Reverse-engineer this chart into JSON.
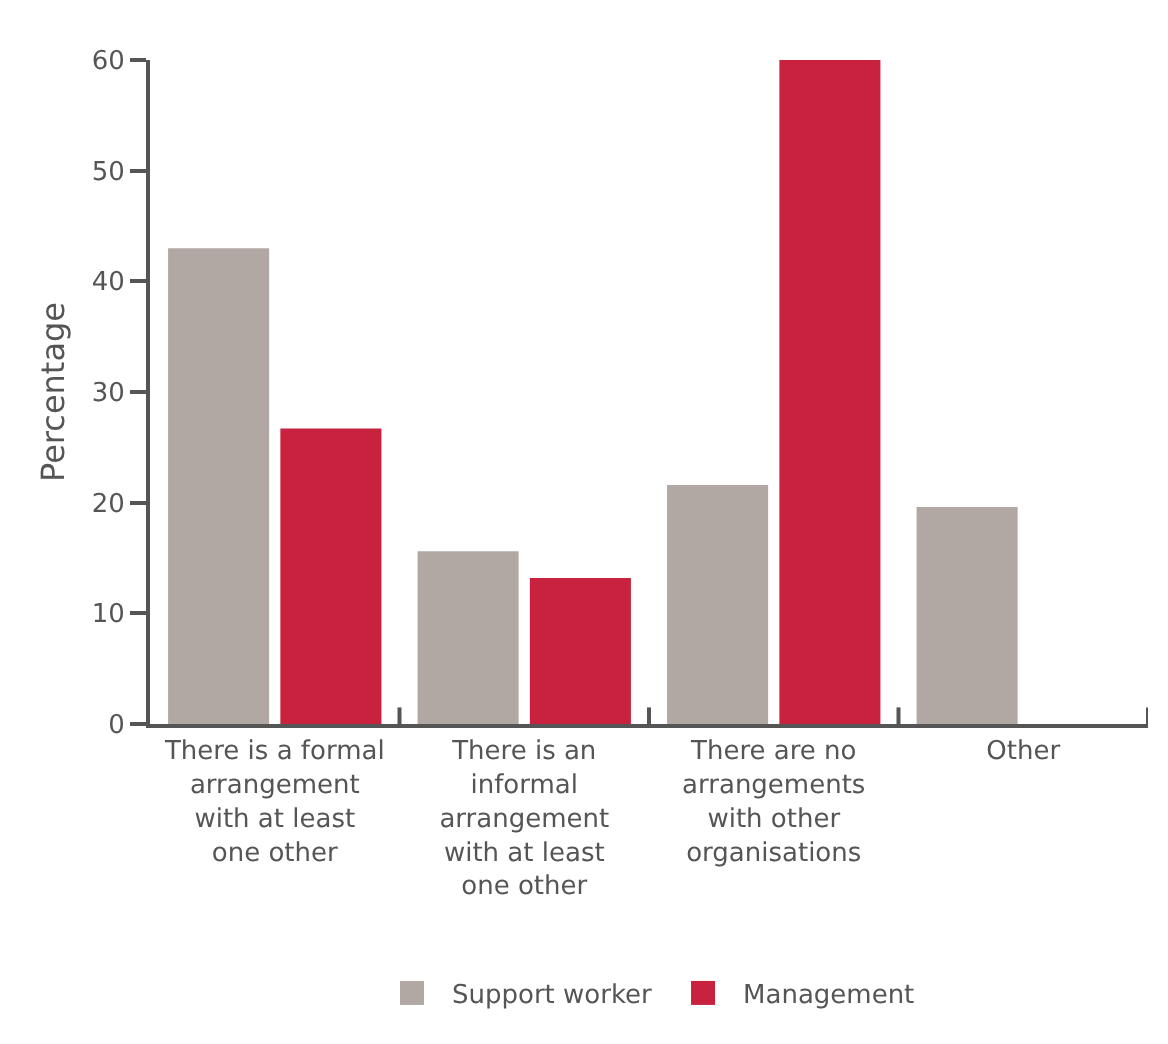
{
  "chart_data": {
    "type": "bar",
    "ylabel": "Percentage",
    "categories": [
      "There is a formal\narrangement\nwith at least\none other",
      "There is an\ninformal\narrangement\nwith at least\none other",
      "There are no\narrangements\nwith other\norganisations",
      "Other"
    ],
    "series": [
      {
        "name": "Support worker",
        "color": "#b1a8a3",
        "values": [
          43,
          15.6,
          21.6,
          19.6
        ]
      },
      {
        "name": "Management",
        "color": "#c8223f",
        "values": [
          26.7,
          13.2,
          60,
          null
        ]
      }
    ],
    "ylim": [
      0,
      60
    ],
    "yticks": [
      0,
      10,
      20,
      30,
      40,
      50,
      60
    ],
    "grid": false,
    "legend": "bottom"
  }
}
